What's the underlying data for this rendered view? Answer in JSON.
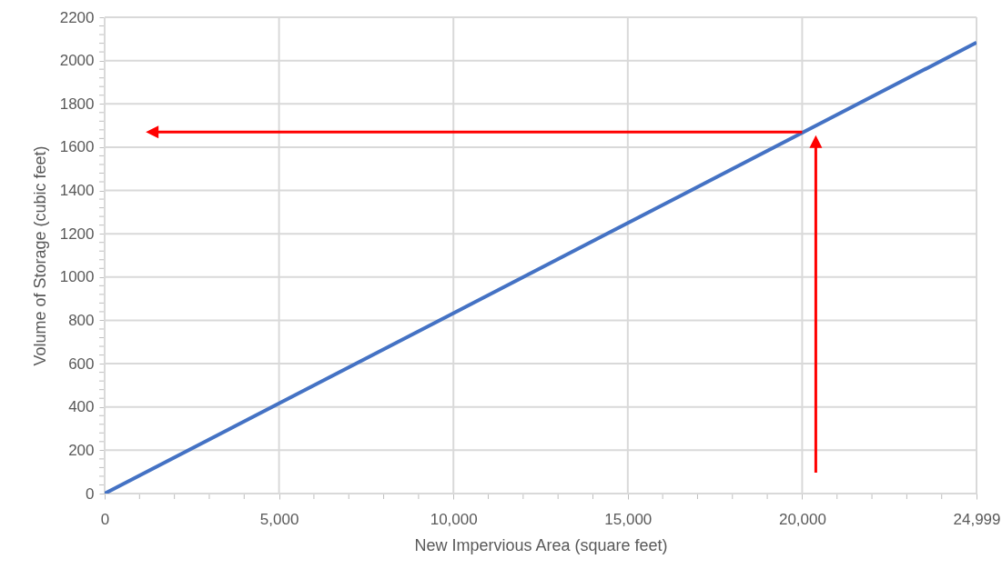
{
  "chart_data": {
    "type": "line",
    "xlabel": "New Impervious Area (square feet)",
    "ylabel": "Volume of Storage (cubic feet)",
    "x": [
      0,
      24999
    ],
    "series": [
      {
        "color": "#4472c4",
        "values": [
          0,
          2083
        ]
      }
    ],
    "xlim": [
      0,
      24999
    ],
    "ylim": [
      0,
      2200
    ],
    "xticks": [
      0,
      {
        "value": 1000,
        "label": null
      },
      {
        "value": 2000,
        "label": null
      },
      {
        "value": 3000,
        "label": null
      },
      {
        "value": 4000,
        "label": null
      },
      {
        "value": 5000,
        "label": "5,000"
      },
      {
        "value": 6000,
        "label": null
      },
      {
        "value": 7000,
        "label": null
      },
      {
        "value": 8000,
        "label": null
      },
      {
        "value": 9000,
        "label": null
      },
      {
        "value": 10000,
        "label": "10,000"
      },
      {
        "value": 11000,
        "label": null
      },
      {
        "value": 12000,
        "label": null
      },
      {
        "value": 13000,
        "label": null
      },
      {
        "value": 14000,
        "label": null
      },
      {
        "value": 15000,
        "label": "15,000"
      },
      {
        "value": 16000,
        "label": null
      },
      {
        "value": 17000,
        "label": null
      },
      {
        "value": 18000,
        "label": null
      },
      {
        "value": 19000,
        "label": null
      },
      {
        "value": 20000,
        "label": "20,000"
      },
      {
        "value": 21000,
        "label": null
      },
      {
        "value": 22000,
        "label": null
      },
      {
        "value": 23000,
        "label": null
      },
      {
        "value": 24000,
        "label": null
      },
      {
        "value": 24999,
        "label": "24,999"
      }
    ],
    "yticks": [
      0,
      {
        "value": 40,
        "label": null
      },
      {
        "value": 80,
        "label": null
      },
      {
        "value": 120,
        "label": null
      },
      {
        "value": 160,
        "label": null
      },
      200,
      {
        "value": 240,
        "label": null
      },
      {
        "value": 280,
        "label": null
      },
      {
        "value": 320,
        "label": null
      },
      {
        "value": 360,
        "label": null
      },
      400,
      {
        "value": 440,
        "label": null
      },
      {
        "value": 480,
        "label": null
      },
      {
        "value": 520,
        "label": null
      },
      {
        "value": 560,
        "label": null
      },
      600,
      {
        "value": 640,
        "label": null
      },
      {
        "value": 680,
        "label": null
      },
      {
        "value": 720,
        "label": null
      },
      {
        "value": 760,
        "label": null
      },
      800,
      {
        "value": 840,
        "label": null
      },
      {
        "value": 880,
        "label": null
      },
      {
        "value": 920,
        "label": null
      },
      {
        "value": 960,
        "label": null
      },
      1000,
      {
        "value": 1040,
        "label": null
      },
      {
        "value": 1080,
        "label": null
      },
      {
        "value": 1120,
        "label": null
      },
      {
        "value": 1160,
        "label": null
      },
      1200,
      {
        "value": 1240,
        "label": null
      },
      {
        "value": 1280,
        "label": null
      },
      {
        "value": 1320,
        "label": null
      },
      {
        "value": 1360,
        "label": null
      },
      1400,
      {
        "value": 1440,
        "label": null
      },
      {
        "value": 1480,
        "label": null
      },
      {
        "value": 1520,
        "label": null
      },
      {
        "value": 1560,
        "label": null
      },
      1600,
      {
        "value": 1640,
        "label": null
      },
      {
        "value": 1680,
        "label": null
      },
      {
        "value": 1720,
        "label": null
      },
      {
        "value": 1760,
        "label": null
      },
      1800,
      {
        "value": 1840,
        "label": null
      },
      {
        "value": 1880,
        "label": null
      },
      {
        "value": 1920,
        "label": null
      },
      {
        "value": 1960,
        "label": null
      },
      2000,
      {
        "value": 2040,
        "label": null
      },
      {
        "value": 2080,
        "label": null
      },
      {
        "value": 2120,
        "label": null
      },
      {
        "value": 2160,
        "label": null
      },
      2200
    ],
    "grid": true,
    "marker": "none",
    "line_style": "solid"
  }
}
